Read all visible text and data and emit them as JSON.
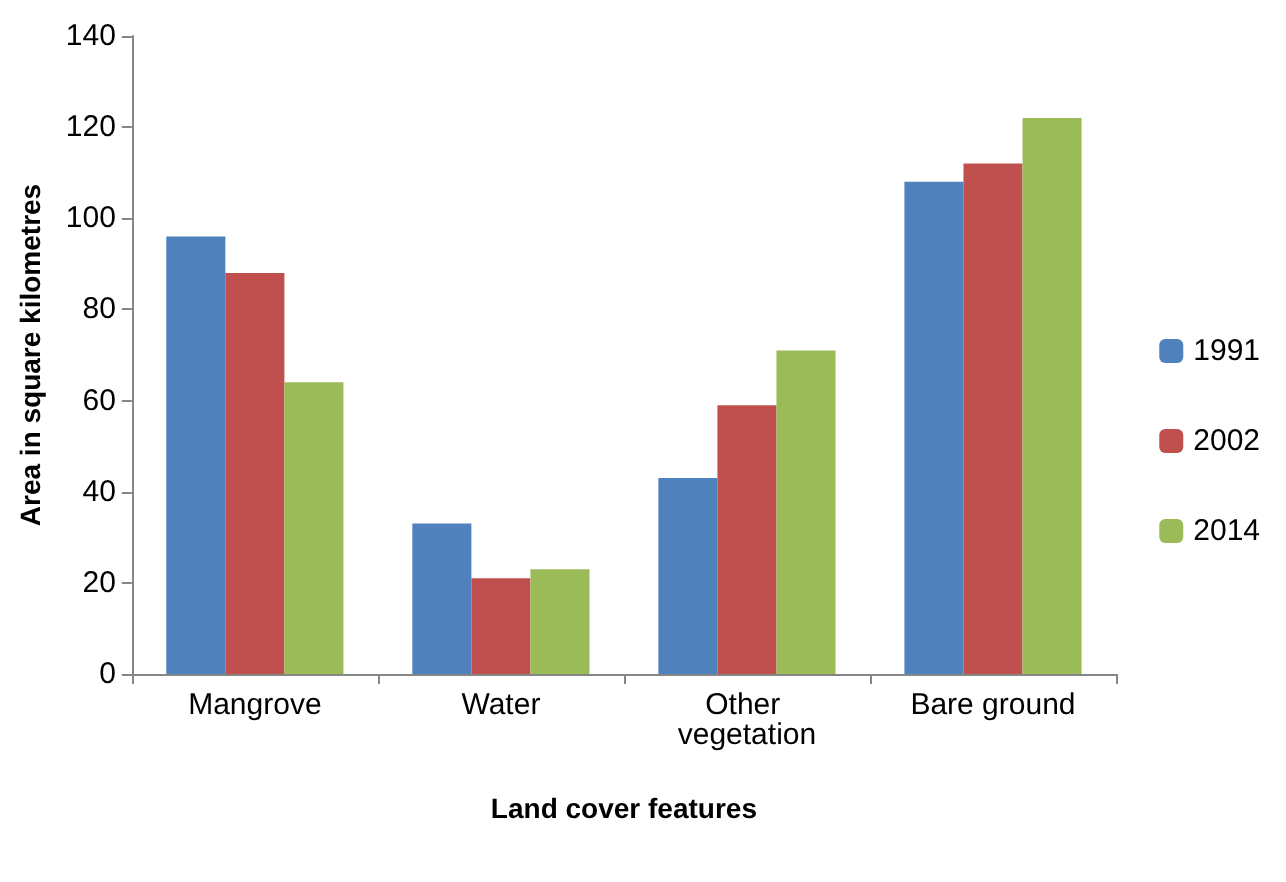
{
  "chart_data": {
    "type": "bar",
    "xlabel": "Land cover features",
    "ylabel": "Area in square kilometres",
    "categories": [
      "Mangrove",
      "Water",
      "Other vegetation",
      "Bare ground"
    ],
    "series": [
      {
        "name": "1991",
        "color": "#4f81bd",
        "values": [
          96,
          33,
          43,
          108
        ]
      },
      {
        "name": "2002",
        "color": "#c0504d",
        "values": [
          88,
          21,
          59,
          112
        ]
      },
      {
        "name": "2014",
        "color": "#9bbb59",
        "values": [
          64,
          23,
          71,
          122
        ]
      }
    ],
    "ylim": [
      0,
      140
    ],
    "yticks": [
      0,
      20,
      40,
      60,
      80,
      100,
      120,
      140
    ],
    "grid": false,
    "legend": "right"
  }
}
